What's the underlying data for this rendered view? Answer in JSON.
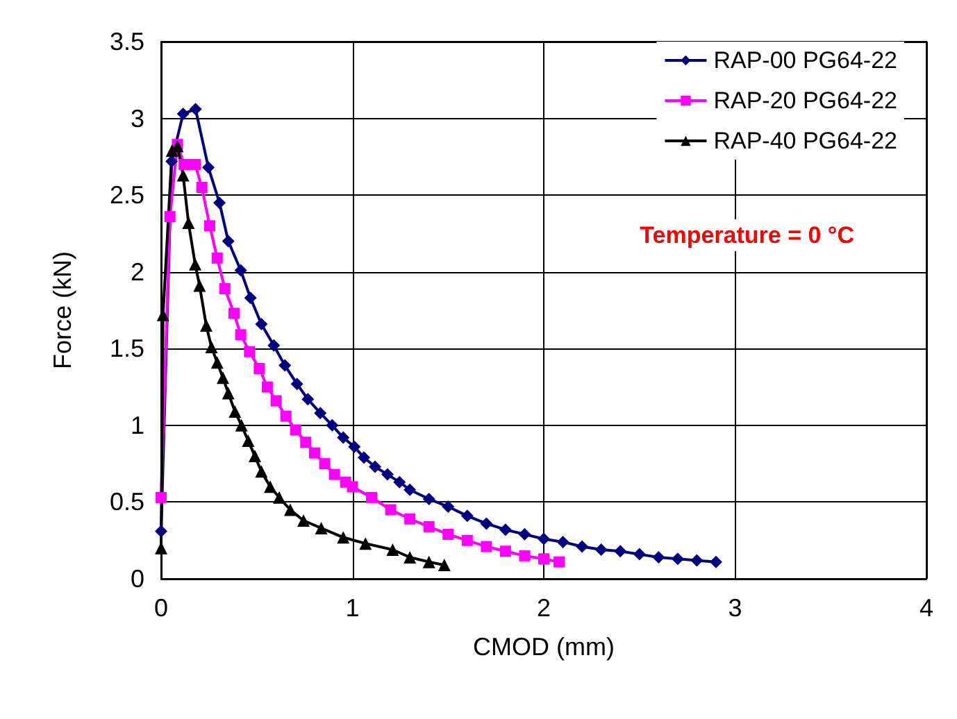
{
  "chart_data": {
    "type": "line",
    "xlabel": "CMOD (mm)",
    "ylabel": "Force (kN)",
    "xlim": [
      0,
      4
    ],
    "xticks": [
      0,
      1,
      2,
      3,
      4
    ],
    "ylim": [
      0,
      3.5
    ],
    "yticks": [
      0,
      0.5,
      1,
      1.5,
      2,
      2.5,
      3,
      3.5
    ],
    "grid": true,
    "legend": "top right",
    "annotations": [
      "Temperature = 0 °C"
    ],
    "series": [
      {
        "name": "RAP-00 PG64-22",
        "color": "#000080",
        "marker": "diamond",
        "x": [
          0,
          0.055,
          0.115,
          0.18,
          0.247,
          0.305,
          0.351,
          0.416,
          0.467,
          0.524,
          0.589,
          0.647,
          0.71,
          0.767,
          0.832,
          0.894,
          0.952,
          1.01,
          1.06,
          1.118,
          1.183,
          1.246,
          1.3,
          1.4,
          1.5,
          1.6,
          1.7,
          1.8,
          1.9,
          2.0,
          2.1,
          2.2,
          2.3,
          2.4,
          2.5,
          2.6,
          2.7,
          2.8,
          2.9
        ],
        "values": [
          0.31,
          2.72,
          3.03,
          3.06,
          2.68,
          2.45,
          2.2,
          2.01,
          1.83,
          1.66,
          1.52,
          1.39,
          1.27,
          1.17,
          1.08,
          1.0,
          0.92,
          0.86,
          0.79,
          0.73,
          0.68,
          0.63,
          0.58,
          0.52,
          0.47,
          0.41,
          0.36,
          0.32,
          0.29,
          0.26,
          0.24,
          0.21,
          0.19,
          0.18,
          0.16,
          0.14,
          0.13,
          0.12,
          0.11
        ]
      },
      {
        "name": "RAP-20 PG64-22",
        "color": "#ff00ff",
        "marker": "square",
        "x": [
          0,
          0.046,
          0.085,
          0.12,
          0.178,
          0.213,
          0.254,
          0.293,
          0.333,
          0.381,
          0.416,
          0.462,
          0.513,
          0.555,
          0.601,
          0.652,
          0.703,
          0.756,
          0.802,
          0.855,
          0.906,
          0.964,
          1.0,
          1.1,
          1.2,
          1.3,
          1.4,
          1.5,
          1.6,
          1.7,
          1.8,
          1.9,
          2.0,
          2.08
        ],
        "values": [
          0.53,
          2.36,
          2.83,
          2.7,
          2.7,
          2.55,
          2.3,
          2.09,
          1.89,
          1.73,
          1.59,
          1.48,
          1.37,
          1.25,
          1.16,
          1.06,
          0.97,
          0.89,
          0.82,
          0.75,
          0.68,
          0.63,
          0.6,
          0.53,
          0.45,
          0.39,
          0.34,
          0.29,
          0.25,
          0.21,
          0.18,
          0.15,
          0.13,
          0.11
        ]
      },
      {
        "name": "RAP-40 PG64-22",
        "color": "#000000",
        "marker": "triangle",
        "x": [
          0,
          0.01,
          0.057,
          0.085,
          0.115,
          0.143,
          0.178,
          0.201,
          0.236,
          0.263,
          0.293,
          0.323,
          0.351,
          0.386,
          0.42,
          0.455,
          0.49,
          0.524,
          0.57,
          0.617,
          0.675,
          0.744,
          0.837,
          0.952,
          1.068,
          1.21,
          1.3,
          1.4,
          1.48
        ],
        "values": [
          0.2,
          1.72,
          2.79,
          2.82,
          2.63,
          2.32,
          2.05,
          1.91,
          1.65,
          1.51,
          1.41,
          1.31,
          1.21,
          1.09,
          1.0,
          0.9,
          0.8,
          0.7,
          0.6,
          0.53,
          0.45,
          0.38,
          0.33,
          0.27,
          0.23,
          0.19,
          0.14,
          0.11,
          0.09
        ]
      }
    ]
  }
}
